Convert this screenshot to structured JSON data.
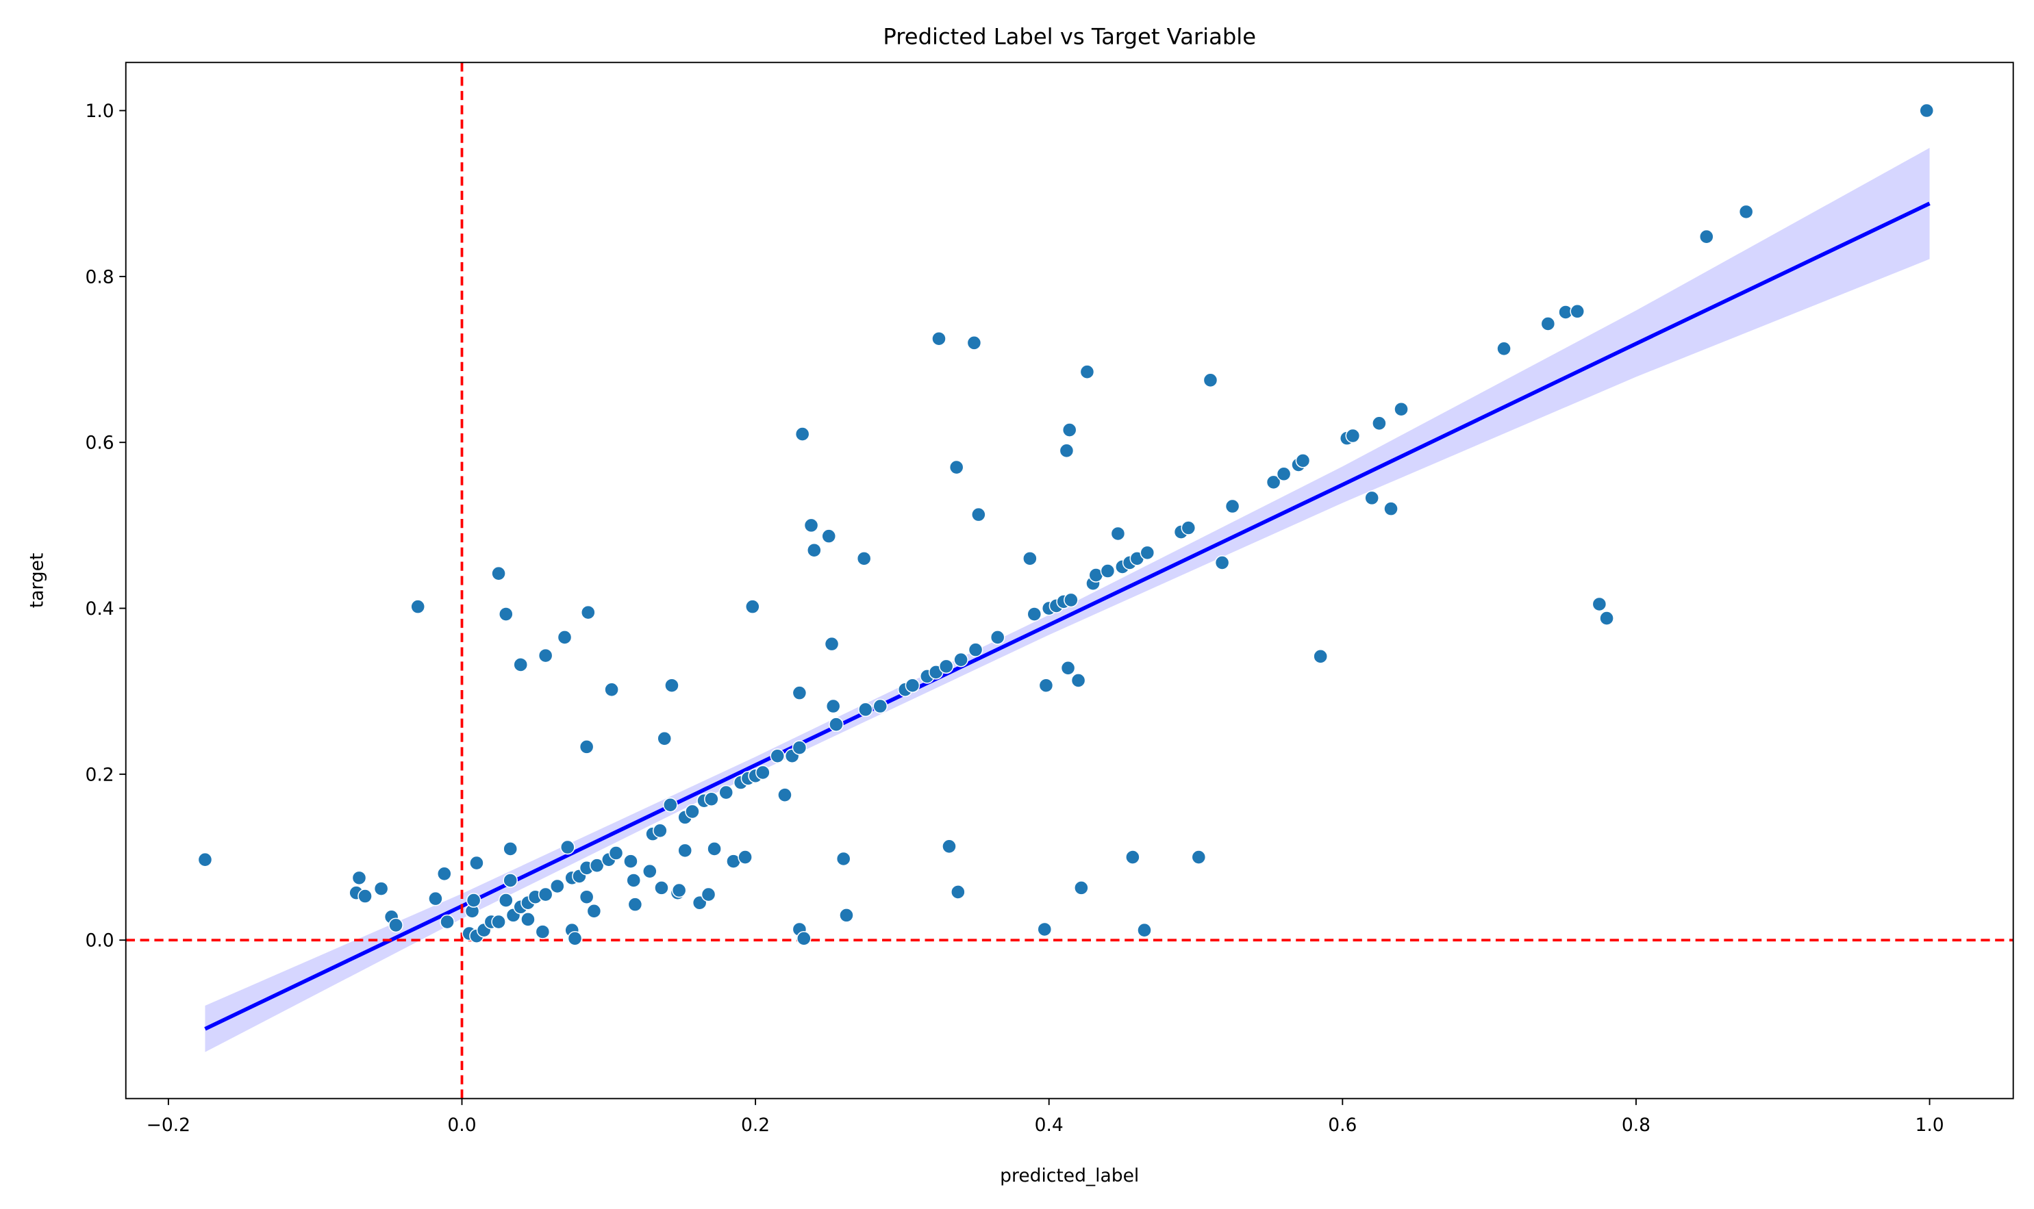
{
  "chart_data": {
    "type": "scatter",
    "title": "Predicted Label vs Target Variable",
    "x_label": "predicted_label",
    "y_label": "target",
    "xlim": [
      -0.229,
      1.057
    ],
    "ylim": [
      -0.191,
      1.058
    ],
    "xticks": [
      {
        "value": -0.2,
        "label": "−0.2"
      },
      {
        "value": 0,
        "label": "0.0"
      },
      {
        "value": 0.2,
        "label": "0.2"
      },
      {
        "value": 0.4,
        "label": "0.4"
      },
      {
        "value": 0.6,
        "label": "0.6"
      },
      {
        "value": 0.8,
        "label": "0.8"
      },
      {
        "value": 1,
        "label": "1.0"
      }
    ],
    "yticks": [
      {
        "value": 0,
        "label": "0.0"
      },
      {
        "value": 0.2,
        "label": "0.2"
      },
      {
        "value": 0.4,
        "label": "0.4"
      },
      {
        "value": 0.6,
        "label": "0.6"
      },
      {
        "value": 0.8,
        "label": "0.8"
      },
      {
        "value": 1,
        "label": "1.0"
      }
    ],
    "grid": false,
    "reference_lines": [
      {
        "axis": "x",
        "value": 0,
        "color": "#ff0000"
      },
      {
        "axis": "y",
        "value": 0,
        "color": "#ff0000"
      }
    ],
    "series": [
      {
        "type": "scatter",
        "color": "#1f77b4",
        "x": [
          -0.175,
          -0.07,
          -0.072,
          -0.066,
          -0.055,
          -0.048,
          -0.045,
          -0.03,
          -0.012,
          -0.018,
          -0.01,
          0.005,
          0.007,
          0.008,
          0.01,
          0.01,
          0.015,
          0.02,
          0.025,
          0.025,
          0.03,
          0.03,
          0.033,
          0.033,
          0.035,
          0.04,
          0.04,
          0.045,
          0.045,
          0.05,
          0.055,
          0.057,
          0.057,
          0.065,
          0.07,
          0.072,
          0.075,
          0.075,
          0.077,
          0.08,
          0.085,
          0.085,
          0.085,
          0.086,
          0.09,
          0.092,
          0.1,
          0.102,
          0.105,
          0.115,
          0.117,
          0.118,
          0.128,
          0.13,
          0.135,
          0.136,
          0.138,
          0.142,
          0.143,
          0.147,
          0.148,
          0.152,
          0.152,
          0.157,
          0.162,
          0.165,
          0.168,
          0.17,
          0.172,
          0.18,
          0.185,
          0.19,
          0.193,
          0.195,
          0.198,
          0.2,
          0.205,
          0.215,
          0.22,
          0.225,
          0.23,
          0.23,
          0.23,
          0.232,
          0.233,
          0.238,
          0.24,
          0.25,
          0.252,
          0.253,
          0.255,
          0.26,
          0.262,
          0.274,
          0.275,
          0.285,
          0.302,
          0.307,
          0.317,
          0.323,
          0.325,
          0.33,
          0.332,
          0.337,
          0.338,
          0.34,
          0.349,
          0.35,
          0.352,
          0.365,
          0.387,
          0.39,
          0.397,
          0.398,
          0.4,
          0.405,
          0.41,
          0.412,
          0.414,
          0.413,
          0.415,
          0.42,
          0.422,
          0.426,
          0.43,
          0.432,
          0.44,
          0.447,
          0.45,
          0.455,
          0.457,
          0.46,
          0.465,
          0.467,
          0.49,
          0.495,
          0.502,
          0.51,
          0.518,
          0.525,
          0.553,
          0.56,
          0.57,
          0.573,
          0.585,
          0.603,
          0.607,
          0.62,
          0.625,
          0.633,
          0.64,
          0.71,
          0.74,
          0.752,
          0.76,
          0.775,
          0.78,
          0.848,
          0.875,
          0.998
        ],
        "values": [
          0.097,
          0.075,
          0.057,
          0.053,
          0.062,
          0.028,
          0.018,
          0.402,
          0.08,
          0.05,
          0.022,
          0.008,
          0.035,
          0.048,
          0.093,
          0.005,
          0.012,
          0.022,
          0.022,
          0.442,
          0.393,
          0.048,
          0.072,
          0.11,
          0.03,
          0.04,
          0.332,
          0.045,
          0.025,
          0.052,
          0.01,
          0.055,
          0.343,
          0.065,
          0.365,
          0.112,
          0.075,
          0.012,
          0.002,
          0.077,
          0.087,
          0.052,
          0.233,
          0.395,
          0.035,
          0.09,
          0.097,
          0.302,
          0.105,
          0.095,
          0.072,
          0.043,
          0.083,
          0.128,
          0.132,
          0.063,
          0.243,
          0.163,
          0.307,
          0.057,
          0.06,
          0.148,
          0.108,
          0.155,
          0.045,
          0.168,
          0.055,
          0.17,
          0.11,
          0.178,
          0.095,
          0.19,
          0.1,
          0.195,
          0.402,
          0.198,
          0.202,
          0.222,
          0.175,
          0.222,
          0.298,
          0.232,
          0.013,
          0.61,
          0.002,
          0.5,
          0.47,
          0.487,
          0.357,
          0.282,
          0.26,
          0.098,
          0.03,
          0.46,
          0.278,
          0.282,
          0.302,
          0.307,
          0.318,
          0.323,
          0.725,
          0.33,
          0.113,
          0.57,
          0.058,
          0.338,
          0.72,
          0.35,
          0.513,
          0.365,
          0.46,
          0.393,
          0.013,
          0.307,
          0.4,
          0.403,
          0.408,
          0.59,
          0.615,
          0.328,
          0.41,
          0.313,
          0.063,
          0.685,
          0.43,
          0.44,
          0.445,
          0.49,
          0.45,
          0.455,
          0.1,
          0.46,
          0.012,
          0.467,
          0.492,
          0.497,
          0.1,
          0.675,
          0.455,
          0.523,
          0.552,
          0.562,
          0.573,
          0.578,
          0.342,
          0.605,
          0.608,
          0.533,
          0.623,
          0.52,
          0.64,
          0.713,
          0.743,
          0.757,
          0.758,
          0.405,
          0.388,
          0.848,
          0.878,
          1.0
        ]
      },
      {
        "type": "line",
        "color": "#0000ff",
        "band_color": "#d6d6ff",
        "x": [
          -0.175,
          0,
          0.2,
          0.4,
          0.6,
          0.8,
          1.0
        ],
        "values": [
          -0.107,
          0.041,
          0.211,
          0.38,
          0.549,
          0.719,
          0.888
        ],
        "band_lower": [
          -0.135,
          0.026,
          0.201,
          0.368,
          0.527,
          0.679,
          0.821
        ],
        "band_upper": [
          -0.079,
          0.056,
          0.221,
          0.392,
          0.571,
          0.759,
          0.955
        ]
      }
    ]
  }
}
